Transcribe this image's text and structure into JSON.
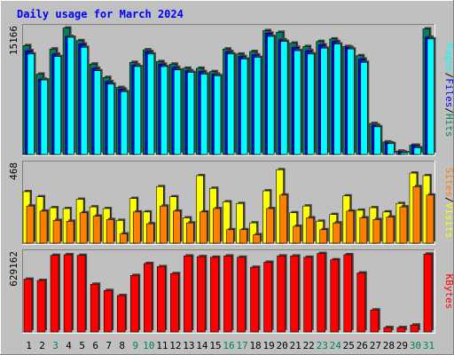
{
  "chart_data": [
    {
      "type": "bar",
      "panel": "top",
      "title": "Daily usage for March 2024",
      "ymax_label": "15166",
      "ylim": [
        0,
        15166
      ],
      "right_labels": [
        "Pages",
        "/",
        "Files",
        "/",
        "Hits"
      ],
      "categories": [
        "1",
        "2",
        "3",
        "4",
        "5",
        "6",
        "7",
        "8",
        "9",
        "10",
        "11",
        "12",
        "13",
        "14",
        "15",
        "16",
        "17",
        "18",
        "19",
        "20",
        "21",
        "22",
        "23",
        "24",
        "25",
        "26",
        "27",
        "28",
        "29",
        "30",
        "31"
      ],
      "series": [
        {
          "name": "Hits",
          "values": [
            13000,
            9600,
            12600,
            15100,
            13600,
            10800,
            9200,
            8000,
            11000,
            12500,
            11100,
            10800,
            10300,
            10300,
            9900,
            12600,
            12000,
            12300,
            14800,
            14600,
            13300,
            12900,
            13500,
            13800,
            12900,
            11800,
            3700,
            1500,
            400,
            1100,
            15000
          ]
        },
        {
          "name": "Files",
          "values": [
            12400,
            9000,
            12000,
            14100,
            13200,
            10300,
            8700,
            7800,
            10700,
            12300,
            10800,
            10400,
            10000,
            9900,
            9600,
            12300,
            11700,
            11900,
            14500,
            13700,
            12800,
            12400,
            13100,
            13500,
            12800,
            11400,
            3500,
            1400,
            300,
            1100,
            14000
          ]
        },
        {
          "name": "Pages",
          "values": [
            12000,
            8900,
            11700,
            14000,
            12800,
            10000,
            8400,
            7500,
            10500,
            12000,
            10500,
            10100,
            9800,
            9600,
            9400,
            12000,
            11400,
            11600,
            14100,
            13500,
            12400,
            12000,
            12700,
            13200,
            12600,
            11000,
            3300,
            1300,
            200,
            800,
            13800
          ]
        }
      ]
    },
    {
      "type": "bar",
      "panel": "middle",
      "ymax_label": "468",
      "ylim": [
        0,
        468
      ],
      "right_labels": [
        "Sites",
        "/",
        "Visits"
      ],
      "categories": [
        "1",
        "2",
        "3",
        "4",
        "5",
        "6",
        "7",
        "8",
        "9",
        "10",
        "11",
        "12",
        "13",
        "14",
        "15",
        "16",
        "17",
        "18",
        "19",
        "20",
        "21",
        "22",
        "23",
        "24",
        "25",
        "26",
        "27",
        "28",
        "29",
        "30",
        "31"
      ],
      "series": [
        {
          "name": "Visits",
          "values": [
            305,
            275,
            210,
            205,
            260,
            215,
            205,
            135,
            265,
            185,
            335,
            275,
            150,
            400,
            325,
            245,
            235,
            120,
            310,
            435,
            180,
            220,
            130,
            170,
            280,
            195,
            210,
            185,
            235,
            415,
            400
          ]
        },
        {
          "name": "Sites",
          "values": [
            220,
            190,
            135,
            130,
            180,
            160,
            140,
            55,
            185,
            115,
            220,
            190,
            120,
            185,
            205,
            80,
            80,
            50,
            205,
            285,
            100,
            150,
            80,
            120,
            190,
            150,
            140,
            155,
            215,
            335,
            285
          ]
        }
      ]
    },
    {
      "type": "bar",
      "panel": "bottom",
      "ymax_label": "629162",
      "ylim": [
        0,
        629162
      ],
      "right_labels": [
        "KBytes"
      ],
      "categories": [
        "1",
        "2",
        "3",
        "4",
        "5",
        "6",
        "7",
        "8",
        "9",
        "10",
        "11",
        "12",
        "13",
        "14",
        "15",
        "16",
        "17",
        "18",
        "19",
        "20",
        "21",
        "22",
        "23",
        "24",
        "25",
        "26",
        "27",
        "28",
        "29",
        "30",
        "31"
      ],
      "series": [
        {
          "name": "KBytes",
          "values": [
            420000,
            410000,
            610000,
            615000,
            610000,
            380000,
            330000,
            290000,
            450000,
            545000,
            520000,
            465000,
            605000,
            600000,
            595000,
            605000,
            595000,
            515000,
            555000,
            605000,
            605000,
            595000,
            625000,
            575000,
            615000,
            470000,
            175000,
            35000,
            35000,
            55000,
            620000
          ]
        }
      ]
    }
  ],
  "x_axis": {
    "labels": [
      "1",
      "2",
      "3",
      "4",
      "5",
      "6",
      "7",
      "8",
      "9",
      "10",
      "11",
      "12",
      "13",
      "14",
      "15",
      "16",
      "17",
      "18",
      "19",
      "20",
      "21",
      "22",
      "23",
      "24",
      "25",
      "26",
      "27",
      "28",
      "29",
      "30",
      "31"
    ],
    "weekend_days": [
      3,
      9,
      10,
      16,
      17,
      23,
      24,
      30,
      31
    ]
  },
  "colors": {
    "background": "#c0c0c0",
    "plot_bg": "#c0c0c0",
    "hits": "#00805c",
    "files": "#0000ff",
    "pages": "#00ffff",
    "visits": "#ffff00",
    "sites": "#ff8000",
    "kbytes": "#ff0000",
    "title": "#0000ff",
    "weekday_label": "#000000",
    "weekend_label": "#00805c",
    "bar_edge": "#000000"
  }
}
